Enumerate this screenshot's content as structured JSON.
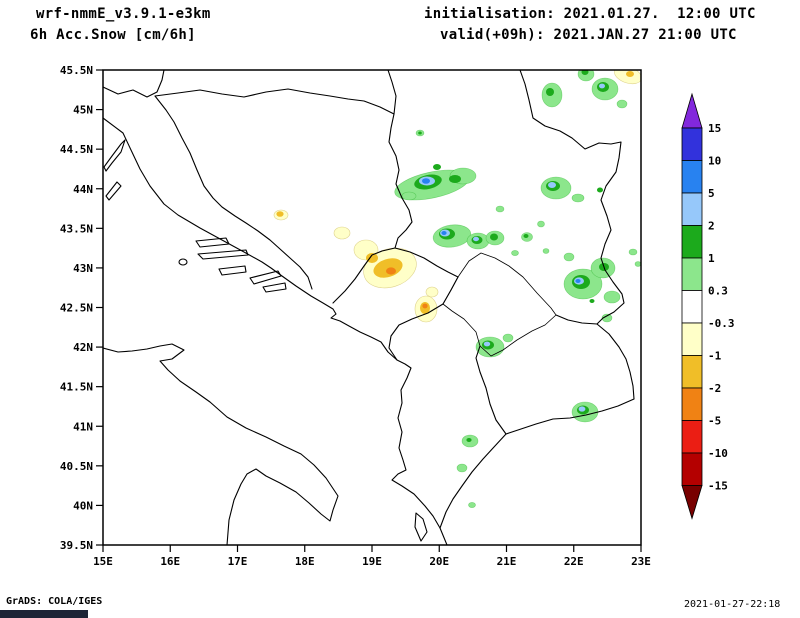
{
  "header": {
    "model_line": "wrf-nmmE_v3.9.1-e3km",
    "field_line": "6h Acc.Snow [cm/6h]",
    "init_line": "initialisation: 2021.01.27.  12:00 UTC",
    "valid_line": "valid(+09h): 2021.JAN.27 21:00 UTC"
  },
  "footer": {
    "left": "GrADS: COLA/IGES",
    "right": "2021-01-27-22:18"
  },
  "map": {
    "x_ticks": [
      "15E",
      "16E",
      "17E",
      "18E",
      "19E",
      "20E",
      "21E",
      "22E",
      "23E"
    ],
    "y_ticks": [
      "45.5N",
      "45N",
      "44.5N",
      "44N",
      "43.5N",
      "43N",
      "42.5N",
      "42N",
      "41.5N",
      "41N",
      "40.5N",
      "40N",
      "39.5N"
    ],
    "lon_range": [
      15,
      23
    ],
    "lat_range": [
      39.5,
      45.5
    ]
  },
  "colorbar": {
    "labels": [
      "15",
      "10",
      "5",
      "2",
      "1",
      "0.3",
      "-0.3",
      "-1",
      "-2",
      "-5",
      "-10",
      "-15"
    ],
    "segment_colors": [
      "#3232dc",
      "#2882f0",
      "#96c8fa",
      "#1caa1c",
      "#8ce68c",
      "#ffffff",
      "#ffffc8",
      "#f0be28",
      "#f08214",
      "#eb1e14",
      "#b40000"
    ],
    "arrow_top_color": "#8228dc",
    "arrow_bottom_color": "#780000"
  },
  "palette": {
    "light_green": "#8ce68c",
    "dark_green": "#1caa1c",
    "light_blue": "#96c8fa",
    "blue": "#2882f0",
    "pale_yellow": "#ffffc8",
    "gold": "#f0be28",
    "orange": "#f08214",
    "taskbar": "#1d2536"
  },
  "chart_data": {
    "type": "heatmap",
    "title": "6h Acc.Snow [cm/6h]",
    "x_ticks": [
      "15E",
      "16E",
      "17E",
      "18E",
      "19E",
      "20E",
      "21E",
      "22E",
      "23E"
    ],
    "y_ticks": [
      "45.5N",
      "45N",
      "44.5N",
      "44N",
      "43.5N",
      "43N",
      "42.5N",
      "42N",
      "41.5N",
      "41N",
      "40.5N",
      "40N",
      "39.5N"
    ],
    "scale_levels": [
      15,
      10,
      5,
      2,
      1,
      0.3,
      -0.3,
      -1,
      -2,
      -5,
      -10,
      -15
    ],
    "scale_units": "cm/6h",
    "snow_maxima": [
      {
        "lon": 19.85,
        "lat": 44.05,
        "max_bin": "5 to 10"
      },
      {
        "lon": 21.7,
        "lat": 44.0,
        "max_bin": "5 to 10"
      },
      {
        "lon": 20.1,
        "lat": 43.45,
        "max_bin": "5 to 10"
      },
      {
        "lon": 20.55,
        "lat": 43.4,
        "max_bin": "2 to 5"
      },
      {
        "lon": 20.8,
        "lat": 43.4,
        "max_bin": "1 to 2"
      },
      {
        "lon": 22.05,
        "lat": 42.85,
        "max_bin": "5 to 10"
      },
      {
        "lon": 20.7,
        "lat": 42.0,
        "max_bin": "2 to 5"
      },
      {
        "lon": 22.1,
        "lat": 41.2,
        "max_bin": "2 to 5"
      },
      {
        "lon": 22.4,
        "lat": 45.3,
        "max_bin": "2 to 5"
      },
      {
        "lon": 21.65,
        "lat": 45.15,
        "max_bin": "1 to 2"
      },
      {
        "lon": 20.45,
        "lat": 40.8,
        "max_bin": "1 to 2"
      },
      {
        "lon": 19.3,
        "lat": 43.05,
        "max_bin": "-2 to -5"
      },
      {
        "lon": 19.8,
        "lat": 42.45,
        "max_bin": "-2 to -5"
      },
      {
        "lon": 17.65,
        "lat": 43.65,
        "max_bin": "-1 to -2"
      },
      {
        "lon": 22.8,
        "lat": 45.45,
        "max_bin": "-1 to -2"
      }
    ]
  }
}
